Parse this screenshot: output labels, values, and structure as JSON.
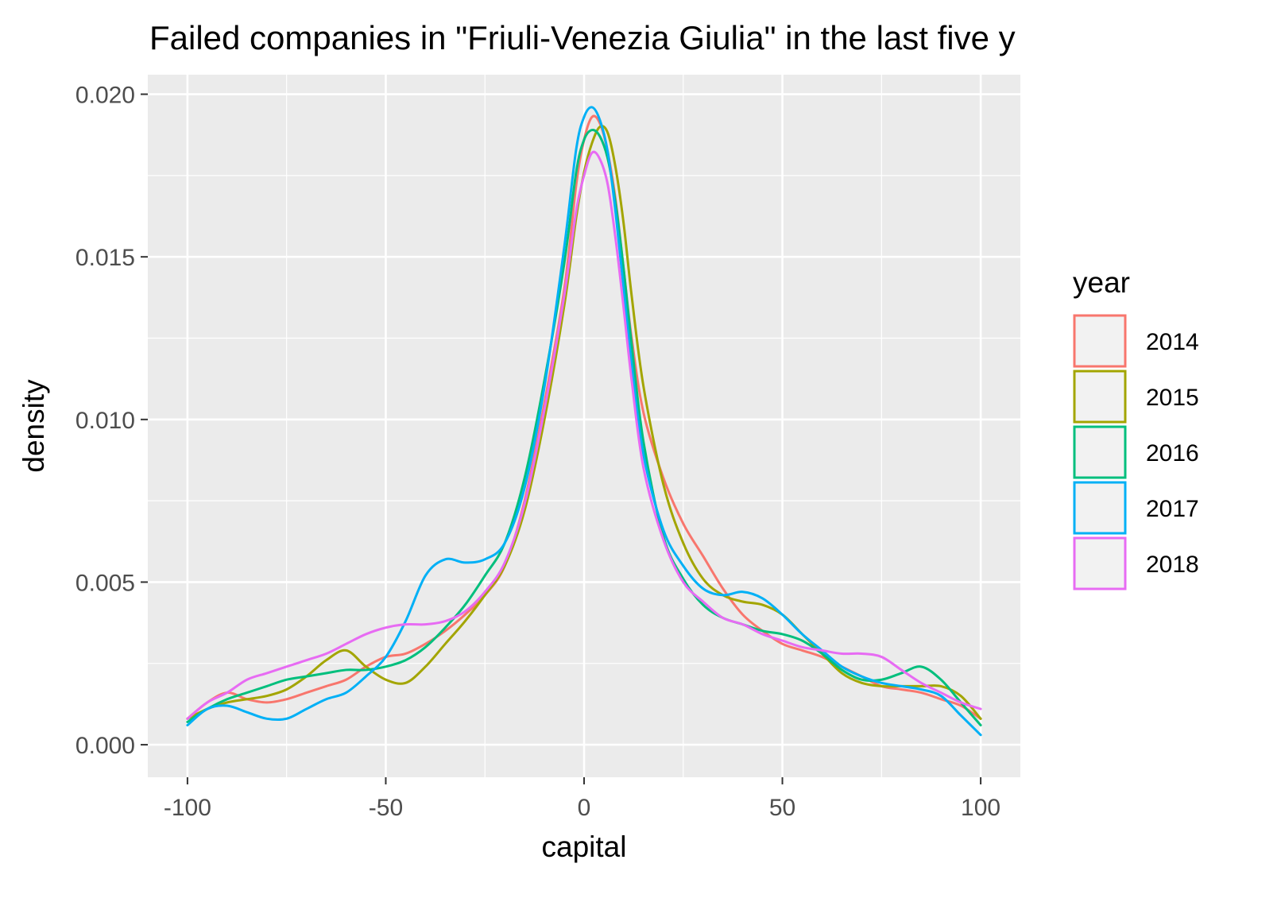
{
  "chart_data": {
    "type": "line",
    "title": "Failed companies in \"Friuli-Venezia Giulia\" in the last five y",
    "xlabel": "capital",
    "ylabel": "density",
    "xlim": [
      -110,
      110
    ],
    "ylim": [
      -0.001,
      0.0206
    ],
    "x_ticks": [
      -100,
      -50,
      0,
      50,
      100
    ],
    "x_tick_labels": [
      "-100",
      "-50",
      "0",
      "50",
      "100"
    ],
    "y_ticks": [
      0,
      0.005,
      0.01,
      0.015,
      0.02
    ],
    "y_tick_labels": [
      "0.000",
      "0.005",
      "0.010",
      "0.015",
      "0.020"
    ],
    "grid": true,
    "legend": {
      "title": "year",
      "position": "right"
    },
    "x": [
      -100,
      -95,
      -90,
      -85,
      -80,
      -75,
      -70,
      -65,
      -60,
      -55,
      -50,
      -45,
      -40,
      -35,
      -30,
      -25,
      -20,
      -15,
      -10,
      -5,
      -2,
      0,
      2,
      4,
      6,
      8,
      10,
      12,
      15,
      20,
      25,
      30,
      35,
      40,
      45,
      50,
      55,
      60,
      65,
      70,
      75,
      80,
      85,
      90,
      95,
      100
    ],
    "series": [
      {
        "name": "2014",
        "color": "#F8766D",
        "values": [
          0.0008,
          0.0013,
          0.0016,
          0.0014,
          0.0013,
          0.0014,
          0.0016,
          0.0018,
          0.002,
          0.0024,
          0.0027,
          0.0028,
          0.0031,
          0.0035,
          0.004,
          0.0046,
          0.0055,
          0.0075,
          0.0105,
          0.014,
          0.0172,
          0.0186,
          0.0193,
          0.0191,
          0.0182,
          0.0167,
          0.0146,
          0.0125,
          0.0102,
          0.0082,
          0.0068,
          0.0058,
          0.0048,
          0.004,
          0.0035,
          0.0031,
          0.0029,
          0.0027,
          0.0024,
          0.0021,
          0.0018,
          0.0017,
          0.0016,
          0.0014,
          0.0012,
          0.0008
        ]
      },
      {
        "name": "2015",
        "color": "#A3A500",
        "values": [
          0.0008,
          0.0011,
          0.0013,
          0.0014,
          0.0015,
          0.0017,
          0.0021,
          0.0026,
          0.0029,
          0.0024,
          0.002,
          0.0019,
          0.0024,
          0.0031,
          0.0038,
          0.0046,
          0.0055,
          0.0072,
          0.01,
          0.0135,
          0.0162,
          0.0176,
          0.0185,
          0.019,
          0.0188,
          0.0177,
          0.016,
          0.0138,
          0.011,
          0.008,
          0.0062,
          0.0051,
          0.0046,
          0.0044,
          0.0043,
          0.004,
          0.0034,
          0.0028,
          0.0022,
          0.0019,
          0.0018,
          0.0018,
          0.0018,
          0.0018,
          0.0015,
          0.0008
        ]
      },
      {
        "name": "2016",
        "color": "#00BF7D",
        "values": [
          0.0007,
          0.0011,
          0.0014,
          0.0016,
          0.0018,
          0.002,
          0.0021,
          0.0022,
          0.0023,
          0.0023,
          0.0024,
          0.0026,
          0.003,
          0.0036,
          0.0043,
          0.0052,
          0.0062,
          0.0082,
          0.0112,
          0.0148,
          0.0176,
          0.0186,
          0.0189,
          0.0187,
          0.018,
          0.0166,
          0.0146,
          0.0123,
          0.0093,
          0.0064,
          0.0051,
          0.0043,
          0.0039,
          0.0037,
          0.0035,
          0.0034,
          0.0032,
          0.0028,
          0.0023,
          0.002,
          0.002,
          0.0022,
          0.0024,
          0.002,
          0.0013,
          0.0006
        ]
      },
      {
        "name": "2017",
        "color": "#00B0F6",
        "values": [
          0.0006,
          0.0011,
          0.0012,
          0.001,
          0.0008,
          0.0008,
          0.0011,
          0.0014,
          0.0016,
          0.0021,
          0.0027,
          0.0038,
          0.0052,
          0.0057,
          0.0056,
          0.0057,
          0.0062,
          0.0079,
          0.011,
          0.0153,
          0.0183,
          0.0193,
          0.0196,
          0.0192,
          0.0182,
          0.0163,
          0.014,
          0.0117,
          0.0089,
          0.0066,
          0.0055,
          0.0048,
          0.0046,
          0.0047,
          0.0045,
          0.004,
          0.0034,
          0.0029,
          0.0024,
          0.0021,
          0.0019,
          0.0018,
          0.0017,
          0.0015,
          0.0009,
          0.0003
        ]
      },
      {
        "name": "2018",
        "color": "#E76BF3",
        "values": [
          0.0008,
          0.0013,
          0.0016,
          0.002,
          0.0022,
          0.0024,
          0.0026,
          0.0028,
          0.0031,
          0.0034,
          0.0036,
          0.0037,
          0.0037,
          0.0038,
          0.0041,
          0.0047,
          0.0056,
          0.0074,
          0.0103,
          0.0138,
          0.0164,
          0.0175,
          0.0182,
          0.018,
          0.0172,
          0.0155,
          0.0134,
          0.0112,
          0.0085,
          0.0063,
          0.005,
          0.0044,
          0.0039,
          0.0037,
          0.0034,
          0.0032,
          0.003,
          0.0029,
          0.0028,
          0.0028,
          0.0027,
          0.0023,
          0.0019,
          0.0016,
          0.0013,
          0.0011
        ]
      }
    ]
  }
}
